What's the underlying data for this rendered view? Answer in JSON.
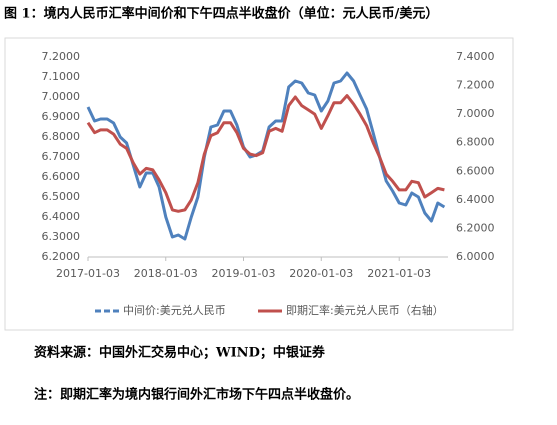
{
  "chart_data": {
    "type": "line",
    "title": "图 1：境内人民币汇率中间价和下午四点半收盘价（单位：元人民币/美元）",
    "source": "资料来源：中国外汇交易中心；WIND；中银证券",
    "note": "注：即期汇率为境内银行间外汇市场下午四点半收盘价。",
    "x": [
      "2017-01-03",
      "2017-02-03",
      "2017-03-03",
      "2017-04-03",
      "2017-05-03",
      "2017-06-03",
      "2017-07-03",
      "2017-08-03",
      "2017-09-03",
      "2017-10-03",
      "2017-11-03",
      "2017-12-03",
      "2018-01-03",
      "2018-02-03",
      "2018-03-03",
      "2018-04-03",
      "2018-05-03",
      "2018-06-03",
      "2018-07-03",
      "2018-08-03",
      "2018-09-03",
      "2018-10-03",
      "2018-11-03",
      "2018-12-03",
      "2019-01-03",
      "2019-02-03",
      "2019-03-03",
      "2019-04-03",
      "2019-05-03",
      "2019-06-03",
      "2019-07-03",
      "2019-08-03",
      "2019-09-03",
      "2019-10-03",
      "2019-11-03",
      "2019-12-03",
      "2020-01-03",
      "2020-02-03",
      "2020-03-03",
      "2020-04-03",
      "2020-05-03",
      "2020-06-03",
      "2020-07-03",
      "2020-08-03",
      "2020-09-03",
      "2020-10-03",
      "2020-11-03",
      "2020-12-03",
      "2021-01-03",
      "2021-02-03",
      "2021-03-03",
      "2021-04-03",
      "2021-05-03",
      "2021-06-03",
      "2021-07-03",
      "2021-08-03"
    ],
    "series": [
      {
        "name": "中间价:美元兑人民币",
        "color": "#4f81bd",
        "axis": "y",
        "values": [
          6.95,
          6.88,
          6.89,
          6.89,
          6.87,
          6.8,
          6.77,
          6.66,
          6.55,
          6.62,
          6.62,
          6.55,
          6.4,
          6.3,
          6.31,
          6.29,
          6.4,
          6.5,
          6.7,
          6.85,
          6.86,
          6.93,
          6.93,
          6.86,
          6.75,
          6.7,
          6.71,
          6.73,
          6.85,
          6.88,
          6.88,
          7.05,
          7.08,
          7.07,
          7.02,
          7.01,
          6.93,
          6.98,
          7.07,
          7.08,
          7.12,
          7.08,
          7.01,
          6.94,
          6.82,
          6.7,
          6.58,
          6.53,
          6.47,
          6.46,
          6.52,
          6.5,
          6.42,
          6.38,
          6.47,
          6.45
        ]
      },
      {
        "name": "即期汇率:美元兑人民币（右轴）",
        "color": "#c0504d",
        "axis": "y2",
        "values": [
          6.94,
          6.87,
          6.89,
          6.89,
          6.86,
          6.79,
          6.76,
          6.66,
          6.58,
          6.62,
          6.61,
          6.54,
          6.45,
          6.33,
          6.32,
          6.33,
          6.4,
          6.52,
          6.72,
          6.85,
          6.87,
          6.94,
          6.94,
          6.87,
          6.76,
          6.72,
          6.71,
          6.73,
          6.88,
          6.9,
          6.88,
          7.06,
          7.12,
          7.06,
          7.03,
          7.0,
          6.9,
          6.99,
          7.08,
          7.08,
          7.13,
          7.07,
          7.0,
          6.92,
          6.8,
          6.7,
          6.58,
          6.53,
          6.47,
          6.47,
          6.53,
          6.52,
          6.42,
          6.45,
          6.48,
          6.47
        ]
      }
    ],
    "xlim": [
      "2017-01-03",
      "2021-08-20"
    ],
    "xticks": [
      "2017-01-03",
      "2018-01-03",
      "2019-01-03",
      "2020-01-03",
      "2021-01-03"
    ],
    "ylim": [
      6.2,
      7.2
    ],
    "yticks": [
      {
        "value": 6.2,
        "label": "6.2000"
      },
      {
        "value": 6.3,
        "label": "6.3000"
      },
      {
        "value": 6.4,
        "label": "6.4000"
      },
      {
        "value": 6.5,
        "label": "6.5000"
      },
      {
        "value": 6.6,
        "label": "6.6000"
      },
      {
        "value": 6.7,
        "label": "6.7000"
      },
      {
        "value": 6.8,
        "label": "6.8000"
      },
      {
        "value": 6.9,
        "label": "6.9000"
      },
      {
        "value": 7.0,
        "label": "7.0000"
      },
      {
        "value": 7.1,
        "label": "7.1000"
      },
      {
        "value": 7.2,
        "label": "7.2000"
      }
    ],
    "y2lim": [
      6.0,
      7.4
    ],
    "y2ticks": [
      {
        "value": 6.0,
        "label": "6.0000"
      },
      {
        "value": 6.2,
        "label": "6.2000"
      },
      {
        "value": 6.4,
        "label": "6.4000"
      },
      {
        "value": 6.6,
        "label": "6.6000"
      },
      {
        "value": 6.8,
        "label": "6.8000"
      },
      {
        "value": 7.0,
        "label": "7.0000"
      },
      {
        "value": 7.2,
        "label": "7.2000"
      },
      {
        "value": 7.4,
        "label": "7.4000"
      }
    ]
  }
}
